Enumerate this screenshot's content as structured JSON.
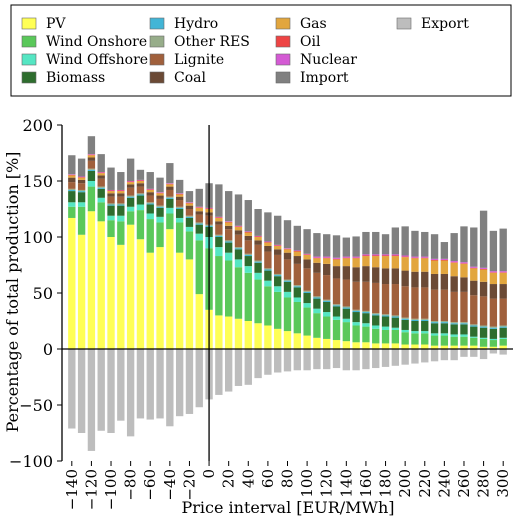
{
  "chart_data": {
    "type": "bar",
    "stacked": true,
    "xlabel": "Price interval [EUR/MWh]",
    "ylabel": "Percentage of total production [%]",
    "ylim": [
      -100,
      200
    ],
    "xlim": [
      -150,
      310
    ],
    "bar_width": 7.5,
    "grid": false,
    "legend_placement": "top, above plot (4 columns)",
    "x_ticks": [
      -140,
      -120,
      -100,
      -80,
      -60,
      -40,
      -20,
      0,
      20,
      40,
      60,
      80,
      100,
      120,
      140,
      160,
      180,
      200,
      220,
      240,
      260,
      280,
      300
    ],
    "x_tick_labels": [
      "−140",
      "−120",
      "−100",
      "−80",
      "−60",
      "−40",
      "−20",
      "0",
      "20",
      "40",
      "60",
      "80",
      "100",
      "120",
      "140",
      "160",
      "180",
      "200",
      "220",
      "240",
      "260",
      "280",
      "300"
    ],
    "y_ticks": [
      -100,
      -50,
      0,
      50,
      100,
      150,
      200
    ],
    "y_tick_labels": [
      "−100",
      "−50",
      "0",
      "50",
      "100",
      "150",
      "200"
    ],
    "x": [
      -140,
      -130,
      -120,
      -110,
      -100,
      -90,
      -80,
      -70,
      -60,
      -50,
      -40,
      -30,
      -20,
      -10,
      0,
      10,
      20,
      30,
      40,
      50,
      60,
      70,
      80,
      90,
      100,
      110,
      120,
      130,
      140,
      150,
      160,
      170,
      180,
      190,
      200,
      210,
      220,
      230,
      240,
      250,
      260,
      270,
      280,
      290,
      300
    ],
    "legend_order": [
      "PV",
      "Hydro",
      "Gas",
      "Export",
      "Wind Onshore",
      "Other RES",
      "Oil",
      "Wind Offshore",
      "Lignite",
      "Nuclear",
      "Biomass",
      "Coal",
      "Import"
    ],
    "series": [
      {
        "name": "PV",
        "color": "#ffff55",
        "values": [
          117,
          102,
          123,
          114,
          100,
          93,
          111,
          98,
          86,
          91,
          107,
          86,
          80,
          49,
          35,
          30,
          29,
          27,
          25,
          23,
          21,
          18,
          16,
          14,
          12,
          10,
          9,
          8,
          7,
          6,
          6,
          5,
          5,
          5,
          4,
          4,
          4,
          3,
          3,
          3,
          3,
          3,
          2,
          2,
          3
        ]
      },
      {
        "name": "Wind Onshore",
        "color": "#5ac85a",
        "values": [
          10,
          25,
          22,
          17,
          15,
          21,
          12,
          26,
          30,
          22,
          14,
          27,
          25,
          48,
          55,
          53,
          50,
          46,
          43,
          39,
          35,
          33,
          30,
          28,
          25,
          22,
          20,
          18,
          17,
          15,
          14,
          13,
          12,
          12,
          11,
          10,
          10,
          9,
          9,
          8,
          8,
          7,
          7,
          6,
          6
        ]
      },
      {
        "name": "Wind Offshore",
        "color": "#55e6c3",
        "values": [
          4,
          4,
          5,
          4,
          4,
          5,
          4,
          5,
          5,
          5,
          5,
          4,
          4,
          6,
          10,
          8,
          7,
          7,
          6,
          6,
          5,
          5,
          5,
          4,
          4,
          4,
          4,
          3,
          3,
          3,
          3,
          3,
          3,
          2,
          2,
          2,
          2,
          2,
          2,
          2,
          2,
          1,
          1,
          1,
          1
        ]
      },
      {
        "name": "Biomass",
        "color": "#2e6d2e",
        "values": [
          10,
          9,
          9,
          8,
          9,
          9,
          8,
          8,
          8,
          8,
          8,
          8,
          8,
          8,
          9,
          9,
          9,
          9,
          9,
          9,
          9,
          9,
          9,
          9,
          9,
          9,
          9,
          9,
          9,
          9,
          9,
          9,
          9,
          9,
          9,
          9,
          9,
          9,
          9,
          9,
          9,
          9,
          9,
          9,
          9
        ]
      },
      {
        "name": "Hydro",
        "color": "#42b5d6",
        "values": [
          1,
          1,
          1,
          1,
          1,
          1,
          1,
          1,
          1,
          1,
          1,
          1,
          1,
          1,
          1,
          1,
          1,
          1,
          1,
          1,
          1,
          1,
          1,
          1,
          1,
          1,
          1,
          1,
          1,
          1,
          1,
          1,
          1,
          1,
          1,
          1,
          1,
          1,
          1,
          1,
          1,
          1,
          1,
          1,
          1
        ]
      },
      {
        "name": "Other RES",
        "color": "#97ad8a",
        "values": [
          1,
          1,
          1,
          1,
          1,
          1,
          1,
          1,
          1,
          1,
          1,
          1,
          1,
          1,
          1,
          1,
          1,
          1,
          1,
          1,
          1,
          1,
          1,
          1,
          1,
          1,
          1,
          1,
          1,
          1,
          1,
          1,
          1,
          1,
          1,
          1,
          1,
          1,
          1,
          1,
          1,
          1,
          1,
          1,
          1
        ]
      },
      {
        "name": "Lignite",
        "color": "#a0603c",
        "values": [
          6,
          6,
          7,
          7,
          6,
          6,
          7,
          6,
          6,
          6,
          6,
          6,
          6,
          7,
          8,
          9,
          10,
          11,
          12,
          14,
          15,
          17,
          18,
          19,
          20,
          21,
          22,
          23,
          24,
          25,
          26,
          27,
          27,
          28,
          28,
          28,
          28,
          28,
          28,
          27,
          27,
          26,
          26,
          25,
          24
        ]
      },
      {
        "name": "Coal",
        "color": "#6b4a35",
        "values": [
          4,
          3,
          3,
          3,
          3,
          3,
          3,
          3,
          3,
          3,
          3,
          3,
          3,
          3,
          3,
          3,
          3,
          4,
          4,
          4,
          5,
          5,
          6,
          7,
          8,
          9,
          10,
          11,
          12,
          13,
          14,
          14,
          14,
          14,
          14,
          14,
          14,
          14,
          14,
          14,
          13,
          13,
          13,
          13,
          13
        ]
      },
      {
        "name": "Gas",
        "color": "#e2a63e",
        "values": [
          2,
          2,
          2,
          2,
          2,
          2,
          2,
          2,
          2,
          2,
          2,
          2,
          2,
          3,
          3,
          3,
          3,
          3,
          3,
          3,
          3,
          3,
          3,
          4,
          4,
          4,
          5,
          6,
          7,
          8,
          9,
          10,
          11,
          11,
          12,
          12,
          12,
          12,
          12,
          12,
          12,
          11,
          11,
          10,
          10
        ]
      },
      {
        "name": "Oil",
        "color": "#ee4444",
        "values": [
          0.5,
          0.5,
          0.5,
          0.5,
          0.5,
          0.5,
          0.5,
          0.5,
          0.5,
          0.5,
          0.5,
          0.5,
          0.5,
          0.5,
          0.5,
          0.5,
          0.5,
          0.5,
          0.5,
          0.5,
          0.5,
          0.5,
          0.5,
          0.5,
          0.5,
          0.5,
          0.5,
          0.5,
          0.5,
          0.5,
          0.5,
          0.5,
          0.5,
          0.5,
          0.5,
          0.5,
          0.5,
          0.5,
          0.5,
          0.5,
          0.5,
          0.5,
          0.5,
          0.5,
          0.5
        ]
      },
      {
        "name": "Nuclear",
        "color": "#d45ad4",
        "values": [
          0.5,
          0.5,
          0.5,
          0.5,
          0.5,
          0.5,
          0.5,
          0.5,
          0.5,
          0.5,
          0.5,
          0.5,
          0.5,
          0.5,
          0.5,
          0.5,
          0.5,
          0.5,
          0.5,
          0.5,
          0.5,
          0.5,
          0.5,
          0.5,
          0.5,
          1,
          1,
          1,
          1,
          1,
          1,
          1,
          1,
          1,
          1,
          1,
          1,
          1,
          1,
          1,
          1,
          1,
          1,
          1,
          1
        ]
      },
      {
        "name": "Import",
        "color": "#808080",
        "values": [
          17,
          16,
          16,
          16,
          20,
          16,
          20,
          9,
          15,
          13,
          18,
          12,
          10,
          16,
          22,
          29,
          27,
          28,
          28,
          24,
          26,
          26,
          25,
          22,
          22,
          21,
          20,
          20,
          17,
          18,
          20,
          20,
          18,
          24,
          26,
          23,
          22,
          22,
          15,
          25,
          32,
          35,
          51,
          36,
          38
        ]
      },
      {
        "name": "Export",
        "color": "#bdbdbd",
        "values": [
          -71,
          -75,
          -91,
          -73,
          -75,
          -64,
          -78,
          -62,
          -63,
          -62,
          -69,
          -60,
          -58,
          -52,
          -45,
          -41,
          -38,
          -33,
          -32,
          -26,
          -23,
          -21,
          -20,
          -19,
          -19,
          -18,
          -18,
          -17,
          -19,
          -19,
          -18,
          -17,
          -16,
          -15,
          -14,
          -13,
          -12,
          -11,
          -10,
          -10,
          -7,
          -7,
          -9,
          -4,
          -5
        ]
      }
    ]
  }
}
